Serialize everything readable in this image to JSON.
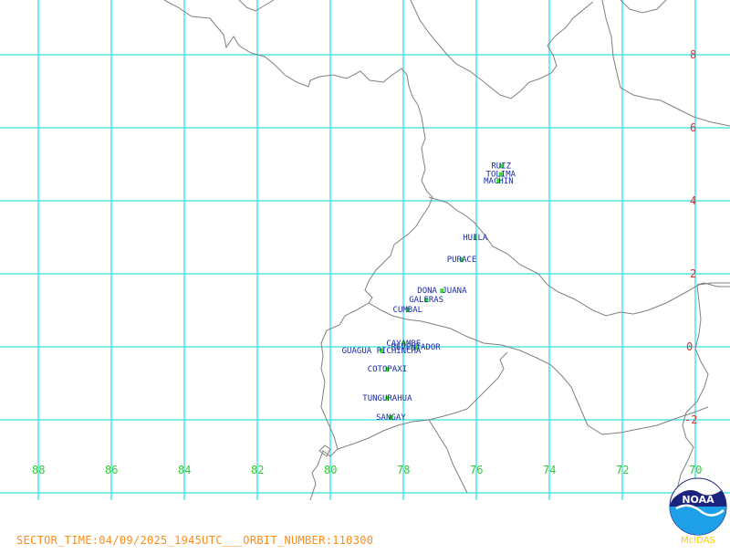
{
  "map": {
    "latitude_labels": [
      "8",
      "6",
      "4",
      "2",
      "0",
      "-2"
    ],
    "longitude_labels": [
      "88",
      "86",
      "84",
      "82",
      "80",
      "78",
      "76",
      "74",
      "72",
      "70"
    ],
    "volcanoes": [
      {
        "name": "RUIZ",
        "lat": 4.89,
        "lon": -75.32
      },
      {
        "name": "TOLIMA",
        "lat": 4.66,
        "lon": -75.33
      },
      {
        "name": "MACHIN",
        "lat": 4.48,
        "lon": -75.39
      },
      {
        "name": "HUILA",
        "lat": 2.93,
        "lon": -76.03
      },
      {
        "name": "PURACE",
        "lat": 2.32,
        "lon": -76.4
      },
      {
        "name": "DONA JUANA",
        "lat": 1.47,
        "lon": -76.94
      },
      {
        "name": "GALERAS",
        "lat": 1.22,
        "lon": -77.37
      },
      {
        "name": "CUMBAL",
        "lat": 0.95,
        "lon": -77.88
      },
      {
        "name": "CAYAMBE",
        "lat": 0.03,
        "lon": -77.99
      },
      {
        "name": "REVENTADOR",
        "lat": -0.08,
        "lon": -77.66
      },
      {
        "name": "GUAGUA PICHINCHA",
        "lat": -0.17,
        "lon": -78.6
      },
      {
        "name": "COTOPAXI",
        "lat": -0.68,
        "lon": -78.44
      },
      {
        "name": "TUNGURAHUA",
        "lat": -1.47,
        "lon": -78.44
      },
      {
        "name": "SANGAY",
        "lat": -2.0,
        "lon": -78.34
      }
    ]
  },
  "footer": {
    "text": "SECTOR_TIME:04/09/2025_1945UTC___ORBIT_NUMBER:110300"
  },
  "logo": {
    "text": "NOAA",
    "software": "McIDAS"
  },
  "colors": {
    "grid": "#33e0e0",
    "coastline": "#808080",
    "latitude_label": "#e03030",
    "longitude_label": "#33cc33",
    "volcano_label": "#1a2aa8",
    "volcano_marker": "#33dd33",
    "footer": "#ff8c1a"
  }
}
